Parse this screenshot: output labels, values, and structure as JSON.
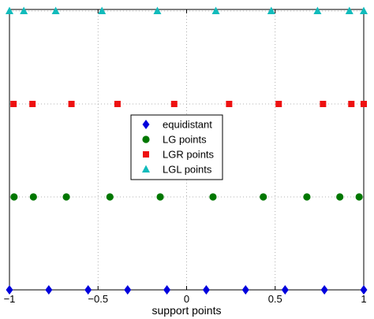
{
  "chart_data": {
    "type": "scatter",
    "xlabel": "support points",
    "ylabel": "",
    "title": "",
    "xlim": [
      -1,
      1
    ],
    "ylim": [
      0,
      3
    ],
    "xticks": [
      -1,
      -0.5,
      0,
      0.5,
      1
    ],
    "xtick_labels": [
      "−1",
      "−0.5",
      "0",
      "0.5",
      "1"
    ],
    "grid": true,
    "legend_position": "center",
    "series": [
      {
        "name": "equidistant",
        "marker": "diamond",
        "color": "#0000dd",
        "y": 0,
        "x": [
          -1,
          -0.778,
          -0.556,
          -0.333,
          -0.111,
          0.111,
          0.333,
          0.556,
          0.778,
          1
        ]
      },
      {
        "name": "LG points",
        "marker": "circle",
        "color": "#007700",
        "y": 1,
        "x": [
          -0.974,
          -0.865,
          -0.679,
          -0.433,
          -0.149,
          0.149,
          0.433,
          0.679,
          0.865,
          0.974
        ]
      },
      {
        "name": "LGR points",
        "marker": "square",
        "color": "#ee1111",
        "y": 2,
        "x": [
          -0.977,
          -0.87,
          -0.65,
          -0.39,
          -0.07,
          0.24,
          0.52,
          0.77,
          0.93,
          1
        ]
      },
      {
        "name": "LGL points",
        "marker": "triangle",
        "color": "#11bbbb",
        "y": 3,
        "x": [
          -1,
          -0.919,
          -0.739,
          -0.478,
          -0.165,
          0.165,
          0.478,
          0.739,
          0.919,
          1
        ]
      }
    ]
  }
}
